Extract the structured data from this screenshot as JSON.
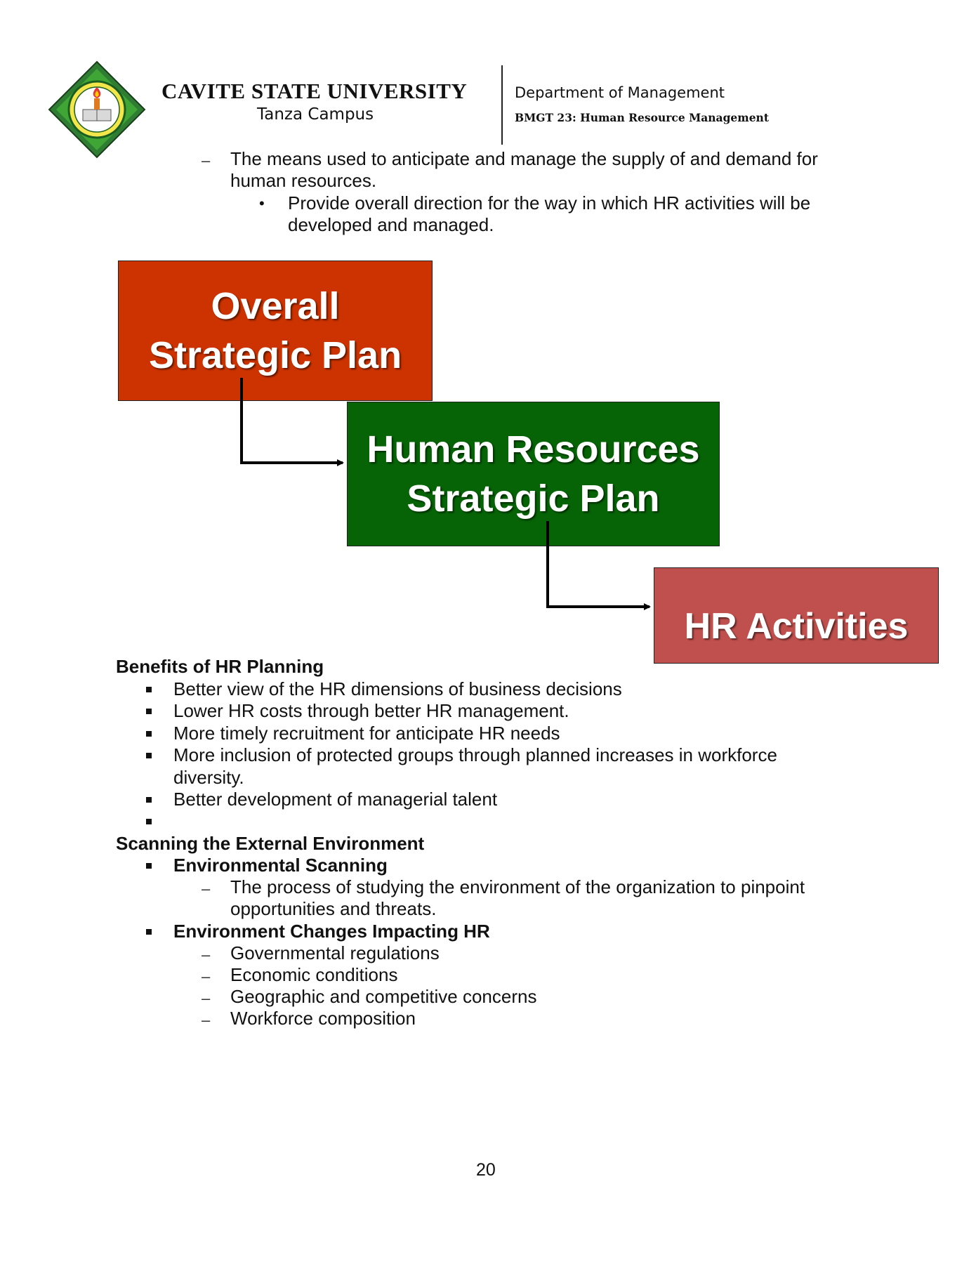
{
  "header": {
    "university": "CAVITE STATE UNIVERSITY",
    "campus": "Tanza Campus",
    "department": "Department of Management",
    "course": "BMGT 23: Human Resource Management",
    "logo_icon": "university-seal-icon"
  },
  "intro": {
    "dash_item_line1": "The means used to anticipate and manage the supply of and demand for",
    "dash_item_line2": "human resources.",
    "bullet_line1": "Provide overall direction for the way in which HR activities will be",
    "bullet_line2": "developed and managed."
  },
  "diagram": {
    "box1_line1": "Overall",
    "box1_line2": "Strategic Plan",
    "box2_line1": "Human Resources",
    "box2_line2": "Strategic Plan",
    "box3": "HR Activities",
    "colors": {
      "box1": "#cc3300",
      "box2": "#066306",
      "box3": "#c0504d"
    }
  },
  "benefits": {
    "heading": "Benefits of HR Planning",
    "items": [
      "Better view of the HR dimensions of business decisions",
      "Lower HR costs through better HR management.",
      "More timely recruitment for anticipate HR needs",
      "More inclusion of protected groups through planned increases in workforce",
      "diversity.",
      "Better development of managerial talent"
    ]
  },
  "scanning": {
    "heading": "Scanning the External Environment",
    "sub1_title": "Environmental Scanning",
    "sub1_def_line1": "The process of studying the environment of the organization to pinpoint",
    "sub1_def_line2": "opportunities and threats.",
    "sub2_title": "Environment Changes Impacting HR",
    "changes": [
      "Governmental regulations",
      "Economic conditions",
      "Geographic and competitive concerns",
      "Workforce composition"
    ]
  },
  "footer": {
    "page_number": "20"
  }
}
